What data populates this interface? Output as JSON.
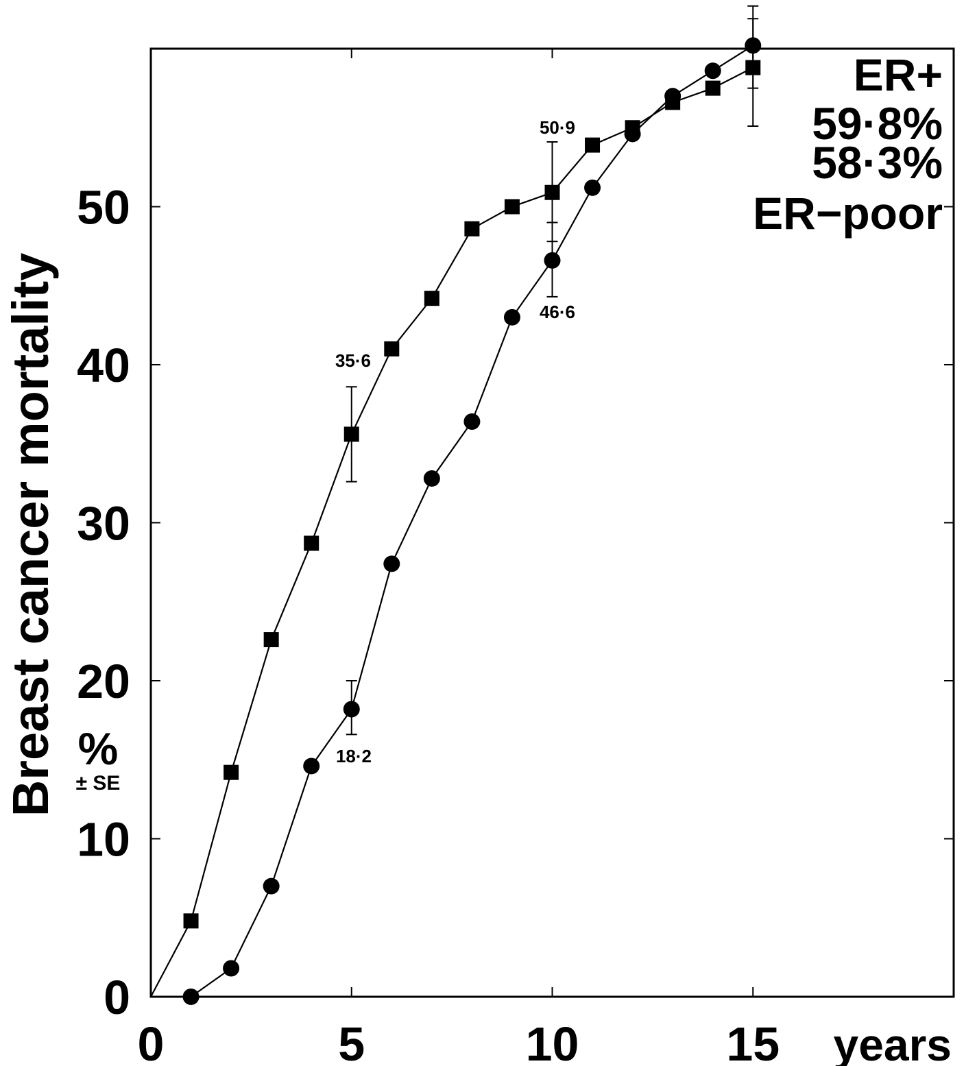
{
  "chart_data": {
    "type": "line",
    "xlabel": "years",
    "ylabel": "Breast cancer mortality",
    "ylabel_unit": "%",
    "ylabel_unit_sub": "± SE",
    "xlim": [
      0,
      20
    ],
    "ylim": [
      0,
      60
    ],
    "x_ticks": [
      0,
      5,
      10,
      15
    ],
    "y_ticks": [
      0,
      10,
      20,
      30,
      40,
      50
    ],
    "grid": false,
    "legend": {
      "placement": "top-right",
      "lines": [
        "ER+",
        "59·8%",
        "58·3%",
        "ER−poor"
      ]
    },
    "series": [
      {
        "marker": "circle",
        "x": [
          0,
          1,
          2,
          3,
          4,
          5,
          6,
          7,
          8,
          9,
          10,
          11,
          12,
          13,
          14,
          15
        ],
        "values": [
          0,
          0,
          1.8,
          7.0,
          14.6,
          18.2,
          27.4,
          32.8,
          36.4,
          43.0,
          46.6,
          51.2,
          54.6,
          57.0,
          58.6,
          60.2
        ],
        "error_bars": [
          {
            "x": 5,
            "low": 16.6,
            "high": 20.0
          },
          {
            "x": 10,
            "low": 44.3,
            "high": 49.0
          },
          {
            "x": 15,
            "low": 57.5,
            "high": 62.7
          }
        ]
      },
      {
        "marker": "square",
        "x": [
          0,
          1,
          2,
          3,
          4,
          5,
          6,
          7,
          8,
          9,
          10,
          11,
          12,
          13,
          14,
          15
        ],
        "values": [
          0,
          4.8,
          14.2,
          22.6,
          28.7,
          35.6,
          41.0,
          44.2,
          48.6,
          50.0,
          50.9,
          53.9,
          55.0,
          56.6,
          57.5,
          58.8
        ],
        "error_bars": [
          {
            "x": 5,
            "low": 32.6,
            "high": 38.6
          },
          {
            "x": 10,
            "low": 47.8,
            "high": 54.1
          },
          {
            "x": 15,
            "low": 55.1,
            "high": 61.9
          }
        ]
      }
    ],
    "annotations": [
      {
        "text": "35·6",
        "x": 5,
        "y": 35.6,
        "pos": "above"
      },
      {
        "text": "18·2",
        "x": 5,
        "y": 18.2,
        "pos": "below-right"
      },
      {
        "text": "50·9",
        "x": 10,
        "y": 50.9,
        "pos": "above"
      },
      {
        "text": "46·6",
        "x": 10,
        "y": 46.6,
        "pos": "below-right"
      }
    ]
  }
}
